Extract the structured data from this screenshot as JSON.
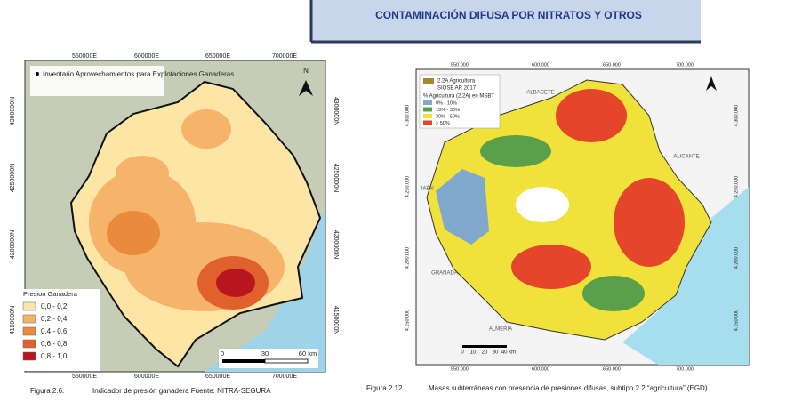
{
  "header": {
    "title": "CONTAMINACIÓN DIFUSA POR NITRATOS Y OTROS"
  },
  "figure_left": {
    "top_labels": [
      "550000E",
      "600000E",
      "650000E",
      "700000E"
    ],
    "bottom_labels": [
      "550000E",
      "600000E",
      "650000E",
      "700000E"
    ],
    "left_labels": [
      "4300000N",
      "4250000N",
      "4200000N",
      "4150000N"
    ],
    "right_labels": [
      "4300000N",
      "4250000N",
      "4200000N",
      "4150000N"
    ],
    "north": "N",
    "points_legend": "Inventario Aprovechamientos para Explotaciones Ganaderas",
    "legend_title": "Presion Ganadera",
    "legend_items": [
      "0,0 - 0,2",
      "0,2 - 0,4",
      "0,4 - 0,6",
      "0,6 - 0,8",
      "0,8 - 1,0"
    ],
    "scale_labels": [
      "0",
      "30",
      "60 km"
    ],
    "caption_number": "Figura 2.6.",
    "caption_text": "Indicador de presión ganadera Fuente: NITRA-SEGURA"
  },
  "figure_right": {
    "top_labels": [
      "550.000",
      "600.000",
      "650.000",
      "700.000"
    ],
    "bottom_labels": [
      "550.000",
      "600.000",
      "650.000",
      "700.000"
    ],
    "left_labels": [
      "4.300.000",
      "4.250.000",
      "4.200.000",
      "4.150.000"
    ],
    "right_labels": [
      "4.300.000",
      "4.250.000",
      "4.200.000",
      "4.150.000"
    ],
    "legend_layer": "2.2A Agricultura",
    "legend_source": "SIOSE AR 2017",
    "legend_title": "% Agricultura (2.2A) en MSBT",
    "legend_items": [
      "0% - 10%",
      "10% - 30%",
      "30% - 50%",
      "> 50%"
    ],
    "places": [
      "ALBACETE",
      "ALICANTE",
      "JAÉN",
      "GRANADA",
      "ALMERÍA"
    ],
    "scale_labels": [
      "0",
      "10",
      "20",
      "30",
      "40 km"
    ],
    "caption_number": "Figura 2.12.",
    "caption_text": "Masas subterráneas con presencia de presiones difusas, subtipo 2.2 “agricultura” (EGD)."
  }
}
